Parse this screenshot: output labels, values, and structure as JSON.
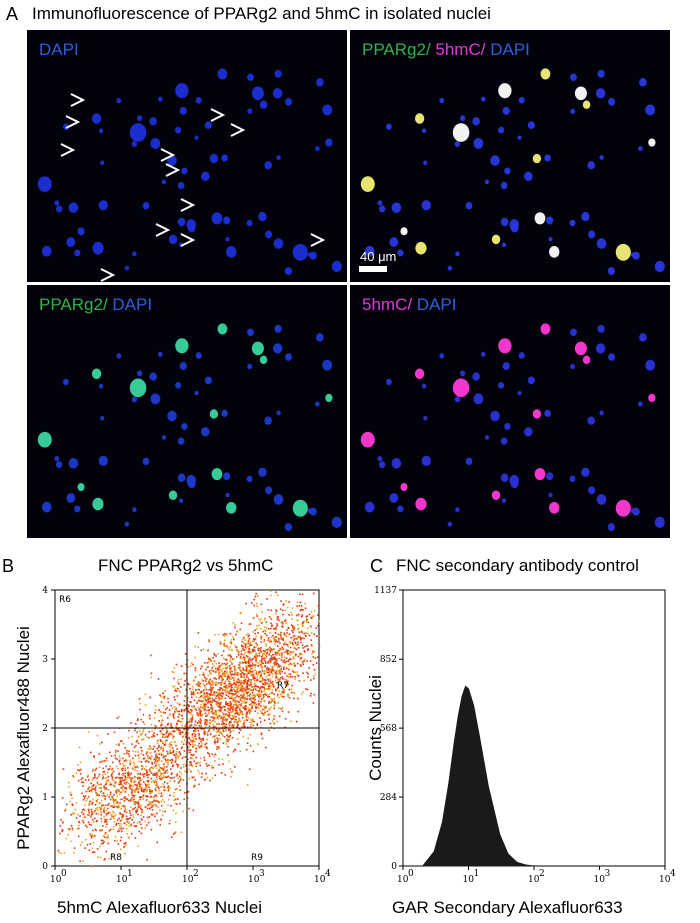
{
  "panel_a": {
    "letter": "A",
    "title": "Immunofluorescence of  PPARg2 and 5hmC in isolated  nuclei",
    "tiles": [
      {
        "name": "dapi",
        "parts": [
          {
            "text": "DAPI",
            "color": "#2f5fd8"
          }
        ]
      },
      {
        "name": "merge",
        "parts": [
          {
            "text": "PPARg2/",
            "color": "#2fb24a"
          },
          {
            "text": " 5hmC/",
            "color": "#e23ad0"
          },
          {
            "text": " DAPI",
            "color": "#2f5fd8"
          }
        ]
      },
      {
        "name": "pparg2",
        "parts": [
          {
            "text": "PPARg2/",
            "color": "#2fb24a"
          },
          {
            "text": " DAPI",
            "color": "#2f5fd8"
          }
        ]
      },
      {
        "name": "5hmc",
        "parts": [
          {
            "text": "5hmC/",
            "color": "#e23ad0"
          },
          {
            "text": " DAPI",
            "color": "#2f5fd8"
          }
        ]
      }
    ],
    "scale_bar": "40 μm"
  },
  "panel_b": {
    "letter": "B",
    "title": "FNC PPARg2 vs 5hmC",
    "xlabel": "5hmC  Alexafluor633 Nuclei",
    "ylabel": "PPARg2 Alexafluor488 Nuclei"
  },
  "panel_c": {
    "letter": "C",
    "title": "FNC secondary antibody control",
    "xlabel": "GAR Secondary Alexafluor633",
    "ylabel": "Counts Nuclei"
  },
  "chart_data": [
    {
      "type": "scatter",
      "title": "FNC PPARg2 vs 5hmC",
      "xlabel": "5hmC  Alexafluor633 Nuclei",
      "ylabel": "PPARg2 Alexafluor488 Nuclei",
      "x_scale": "log",
      "xlim": [
        1,
        10000
      ],
      "ylim": [
        0,
        4
      ],
      "x_ticks": [
        "10",
        "1",
        "2",
        "3",
        "4"
      ],
      "x_tick_exponents": [
        "0",
        "1",
        "2",
        "3",
        "4"
      ],
      "y_ticks": [
        "0",
        "1",
        "2",
        "3",
        "4"
      ],
      "gates": {
        "x": 100,
        "y": 2
      },
      "regions": [
        "R6",
        "R7",
        "R8",
        "R9"
      ],
      "marker_color": "#e23a0e",
      "dense_color": "#f0a020",
      "clusters": [
        {
          "x": 15,
          "y": 1.15,
          "weight": 0.34
        },
        {
          "x": 400,
          "y": 2.45,
          "weight": 0.46
        },
        {
          "x": 2000,
          "y": 3.1,
          "weight": 0.2
        }
      ]
    },
    {
      "type": "area",
      "title": "FNC secondary antibody control",
      "xlabel": "GAR Secondary Alexafluor633",
      "ylabel": "Counts Nuclei",
      "x_scale": "log",
      "xlim": [
        1,
        10000
      ],
      "ylim": [
        0,
        1137
      ],
      "y_ticks": [
        "0",
        "284",
        "568",
        "852",
        "1137"
      ],
      "x_ticks": [
        "10",
        "10",
        "10",
        "10",
        "10"
      ],
      "x_tick_exponents": [
        "0",
        "1",
        "2",
        "3",
        "4"
      ],
      "fill_color": "#1a1a1a",
      "x": [
        2.0,
        3.0,
        4.0,
        5.0,
        6.0,
        7.0,
        8.0,
        9.0,
        10.0,
        12.0,
        15.0,
        20.0,
        30.0,
        40.0,
        55.0,
        75.0,
        100.0
      ],
      "values": [
        0,
        60,
        180,
        340,
        500,
        620,
        700,
        740,
        730,
        660,
        520,
        330,
        130,
        50,
        15,
        4,
        0
      ]
    }
  ]
}
